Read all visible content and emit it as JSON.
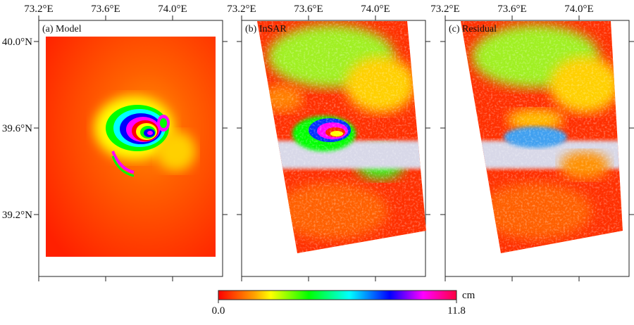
{
  "panels": [
    {
      "label": "(a) Model"
    },
    {
      "label": "(b) InSAR"
    },
    {
      "label": "(c) Residual"
    }
  ],
  "axes": {
    "lon_ticks": [
      "73.2°E",
      "73.6°E",
      "74.0°E"
    ],
    "lat_ticks": [
      "40.0°N",
      "39.6°N",
      "39.2°N"
    ]
  },
  "colorbar": {
    "unit": "cm",
    "min_label": "0.0",
    "max_label": "11.8",
    "min": 0.0,
    "max": 11.8,
    "colors": [
      "#ff0000",
      "#ffff00",
      "#00ff00",
      "#00ffff",
      "#0000ff",
      "#ff00ff",
      "#ff0040"
    ]
  }
}
